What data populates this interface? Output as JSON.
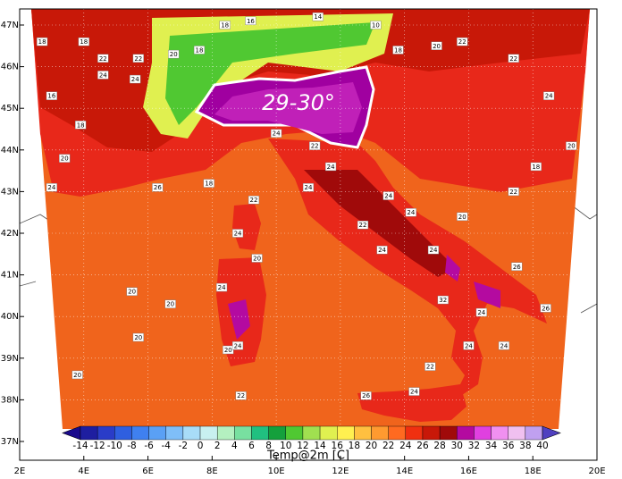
{
  "map": {
    "lon_ticks": [
      {
        "value": 2,
        "label": "2E"
      },
      {
        "value": 4,
        "label": "4E"
      },
      {
        "value": 6,
        "label": "6E"
      },
      {
        "value": 8,
        "label": "8E"
      },
      {
        "value": 10,
        "label": "10E"
      },
      {
        "value": 12,
        "label": "12E"
      },
      {
        "value": 14,
        "label": "14E"
      },
      {
        "value": 16,
        "label": "16E"
      },
      {
        "value": 18,
        "label": "18E"
      },
      {
        "value": 20,
        "label": "20E"
      }
    ],
    "lat_ticks": [
      {
        "value": 47,
        "label": "47N"
      },
      {
        "value": 46,
        "label": "46N"
      },
      {
        "value": 45,
        "label": "45N"
      },
      {
        "value": 44,
        "label": "44N"
      },
      {
        "value": 43,
        "label": "43N"
      },
      {
        "value": 42,
        "label": "42N"
      },
      {
        "value": 41,
        "label": "41N"
      },
      {
        "value": 40,
        "label": "40N"
      },
      {
        "value": 39,
        "label": "39N"
      },
      {
        "value": 38,
        "label": "38N"
      },
      {
        "value": 37,
        "label": "37N"
      }
    ],
    "annotation": "29-30°",
    "stations": [
      {
        "lon": 2.7,
        "lat": 46.6,
        "text": "18"
      },
      {
        "lon": 4.0,
        "lat": 46.6,
        "text": "18"
      },
      {
        "lon": 4.6,
        "lat": 46.2,
        "text": "22"
      },
      {
        "lon": 4.6,
        "lat": 45.8,
        "text": "24"
      },
      {
        "lon": 5.6,
        "lat": 45.7,
        "text": "24"
      },
      {
        "lon": 5.7,
        "lat": 46.2,
        "text": "22"
      },
      {
        "lon": 6.8,
        "lat": 46.3,
        "text": "20"
      },
      {
        "lon": 7.6,
        "lat": 46.4,
        "text": "18"
      },
      {
        "lon": 8.4,
        "lat": 47.0,
        "text": "18"
      },
      {
        "lon": 9.2,
        "lat": 47.1,
        "text": "16"
      },
      {
        "lon": 11.3,
        "lat": 47.2,
        "text": "14"
      },
      {
        "lon": 13.1,
        "lat": 47.0,
        "text": "10"
      },
      {
        "lon": 13.8,
        "lat": 46.4,
        "text": "18"
      },
      {
        "lon": 15.0,
        "lat": 46.5,
        "text": "20"
      },
      {
        "lon": 15.8,
        "lat": 46.6,
        "text": "22"
      },
      {
        "lon": 17.4,
        "lat": 46.2,
        "text": "22"
      },
      {
        "lon": 3.0,
        "lat": 45.3,
        "text": "16"
      },
      {
        "lon": 3.9,
        "lat": 44.6,
        "text": "18"
      },
      {
        "lon": 3.4,
        "lat": 43.8,
        "text": "20"
      },
      {
        "lon": 3.0,
        "lat": 43.1,
        "text": "24"
      },
      {
        "lon": 6.3,
        "lat": 43.1,
        "text": "26"
      },
      {
        "lon": 7.9,
        "lat": 43.2,
        "text": "18"
      },
      {
        "lon": 10.0,
        "lat": 44.4,
        "text": "24"
      },
      {
        "lon": 11.2,
        "lat": 44.1,
        "text": "22"
      },
      {
        "lon": 11.7,
        "lat": 43.6,
        "text": "24"
      },
      {
        "lon": 11.0,
        "lat": 43.1,
        "text": "24"
      },
      {
        "lon": 9.3,
        "lat": 42.8,
        "text": "22"
      },
      {
        "lon": 8.8,
        "lat": 42.0,
        "text": "24"
      },
      {
        "lon": 9.4,
        "lat": 41.4,
        "text": "20"
      },
      {
        "lon": 8.3,
        "lat": 40.7,
        "text": "24"
      },
      {
        "lon": 5.5,
        "lat": 40.6,
        "text": "20"
      },
      {
        "lon": 6.7,
        "lat": 40.3,
        "text": "20"
      },
      {
        "lon": 5.7,
        "lat": 39.5,
        "text": "20"
      },
      {
        "lon": 3.8,
        "lat": 38.6,
        "text": "20"
      },
      {
        "lon": 8.9,
        "lat": 38.1,
        "text": "22"
      },
      {
        "lon": 15.8,
        "lat": 42.4,
        "text": "20"
      },
      {
        "lon": 14.9,
        "lat": 41.6,
        "text": "24"
      },
      {
        "lon": 17.5,
        "lat": 41.2,
        "text": "26"
      },
      {
        "lon": 18.4,
        "lat": 40.2,
        "text": "26"
      },
      {
        "lon": 16.0,
        "lat": 39.3,
        "text": "24"
      },
      {
        "lon": 14.8,
        "lat": 38.8,
        "text": "22"
      },
      {
        "lon": 14.3,
        "lat": 38.2,
        "text": "24"
      },
      {
        "lon": 12.8,
        "lat": 38.1,
        "text": "26"
      },
      {
        "lon": 18.5,
        "lat": 45.3,
        "text": "24"
      },
      {
        "lon": 19.2,
        "lat": 44.1,
        "text": "20"
      },
      {
        "lon": 18.1,
        "lat": 43.6,
        "text": "18"
      },
      {
        "lon": 17.4,
        "lat": 43.0,
        "text": "22"
      },
      {
        "lon": 13.5,
        "lat": 42.9,
        "text": "24"
      },
      {
        "lon": 12.7,
        "lat": 42.2,
        "text": "22"
      },
      {
        "lon": 14.2,
        "lat": 42.5,
        "text": "24"
      },
      {
        "lon": 13.3,
        "lat": 41.6,
        "text": "24"
      },
      {
        "lon": 15.2,
        "lat": 40.4,
        "text": "32"
      },
      {
        "lon": 16.4,
        "lat": 40.1,
        "text": "24"
      },
      {
        "lon": 17.1,
        "lat": 39.3,
        "text": "24"
      },
      {
        "lon": 8.5,
        "lat": 39.2,
        "text": "20"
      },
      {
        "lon": 8.8,
        "lat": 39.3,
        "text": "24"
      }
    ]
  },
  "colorbar": {
    "title": "Temp@2m [C]",
    "levels": [
      -14,
      -12,
      -10,
      -8,
      -6,
      -4,
      -2,
      0,
      2,
      4,
      6,
      8,
      10,
      12,
      14,
      16,
      18,
      20,
      22,
      24,
      26,
      28,
      30,
      32,
      34,
      36,
      38,
      40
    ],
    "colors": [
      "#1a0a8c",
      "#1e1ea0",
      "#2a3cc8",
      "#2f5fe0",
      "#3f80f0",
      "#5aa0f5",
      "#7fbef8",
      "#a8dcf8",
      "#c8f0f0",
      "#b4f0c0",
      "#78e0a0",
      "#20c080",
      "#14a03c",
      "#50c832",
      "#a0e050",
      "#e0f050",
      "#fff050",
      "#ffc040",
      "#ff9a30",
      "#ff6a20",
      "#f03010",
      "#c81808",
      "#a00a0a",
      "#b40aa0",
      "#e040e0",
      "#f090f0",
      "#f0c0f0",
      "#c0a0f0",
      "#5040c0"
    ]
  }
}
